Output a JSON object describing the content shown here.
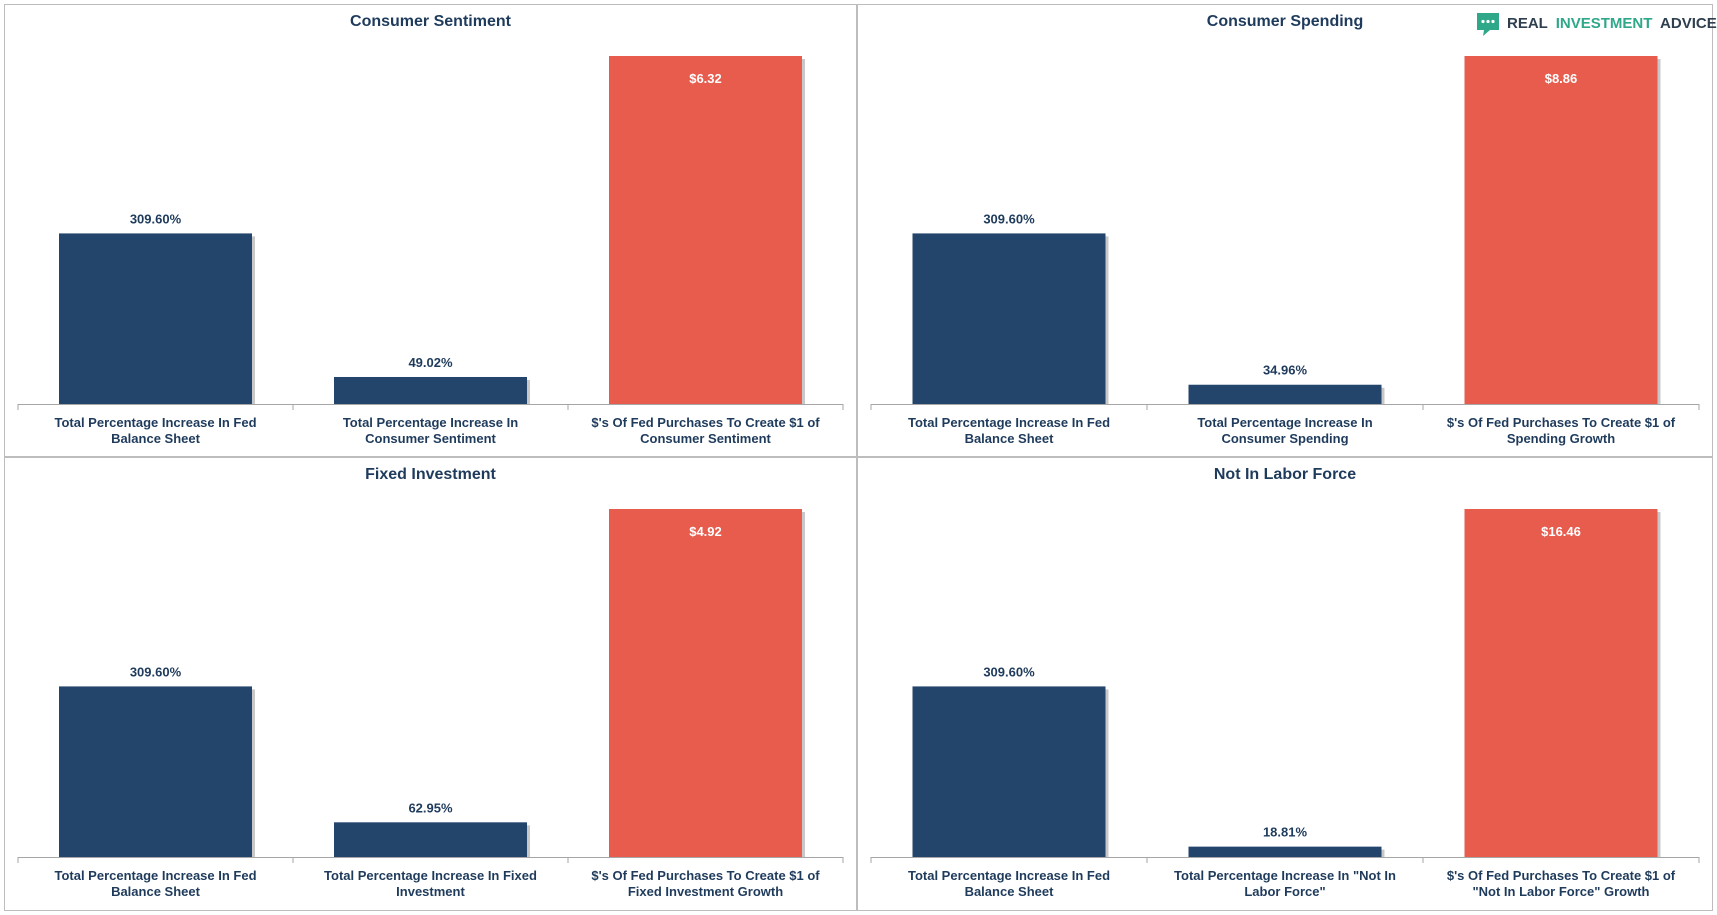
{
  "brand": {
    "name_part1": "REAL",
    "name_part2": "INVESTMENT",
    "name_part3": "ADVICE",
    "color_dark": "#2f3f4f",
    "color_accent": "#2fa88a",
    "icon": "speech-bubble-logo-icon"
  },
  "colors": {
    "dark_bar": "#23446b",
    "red_bar": "#e85c4e",
    "title": "#1f3b5c"
  },
  "chart_data": [
    {
      "type": "bar",
      "title": "Consumer Sentiment",
      "categories": [
        "Total Percentage Increase In Fed Balance Sheet",
        "Total Percentage Increase In Consumer Sentiment",
        "$'s Of Fed Purchases To Create $1 of Consumer Sentiment"
      ],
      "values": [
        309.6,
        49.02,
        6.32
      ],
      "labels": [
        "309.60%",
        "49.02%",
        "$6.32"
      ],
      "bar_colors": [
        "dark",
        "dark",
        "red"
      ],
      "secondary_axis_bar": 2
    },
    {
      "type": "bar",
      "title": "Consumer Spending",
      "categories": [
        "Total Percentage Increase In Fed Balance Sheet",
        "Total Percentage Increase In Consumer Spending",
        "$'s Of Fed Purchases To Create $1 of Spending Growth"
      ],
      "values": [
        309.6,
        34.96,
        8.86
      ],
      "labels": [
        "309.60%",
        "34.96%",
        "$8.86"
      ],
      "bar_colors": [
        "dark",
        "dark",
        "red"
      ],
      "secondary_axis_bar": 2
    },
    {
      "type": "bar",
      "title": "Fixed Investment",
      "categories": [
        "Total Percentage Increase In Fed Balance Sheet",
        "Total Percentage Increase In Fixed Investment",
        "$'s Of Fed Purchases To Create $1 of Fixed Investment Growth"
      ],
      "values": [
        309.6,
        62.95,
        4.92
      ],
      "labels": [
        "309.60%",
        "62.95%",
        "$4.92"
      ],
      "bar_colors": [
        "dark",
        "dark",
        "red"
      ],
      "secondary_axis_bar": 2
    },
    {
      "type": "bar",
      "title": "Not In Labor Force",
      "categories": [
        "Total Percentage Increase In Fed Balance Sheet",
        "Total Percentage Increase In \"Not In Labor Force\"",
        "$'s Of Fed Purchases To Create $1 of \"Not In Labor Force\" Growth"
      ],
      "values": [
        309.6,
        18.81,
        16.46
      ],
      "labels": [
        "309.60%",
        "18.81%",
        "$16.46"
      ],
      "bar_colors": [
        "dark",
        "dark",
        "red"
      ],
      "secondary_axis_bar": 2
    }
  ]
}
